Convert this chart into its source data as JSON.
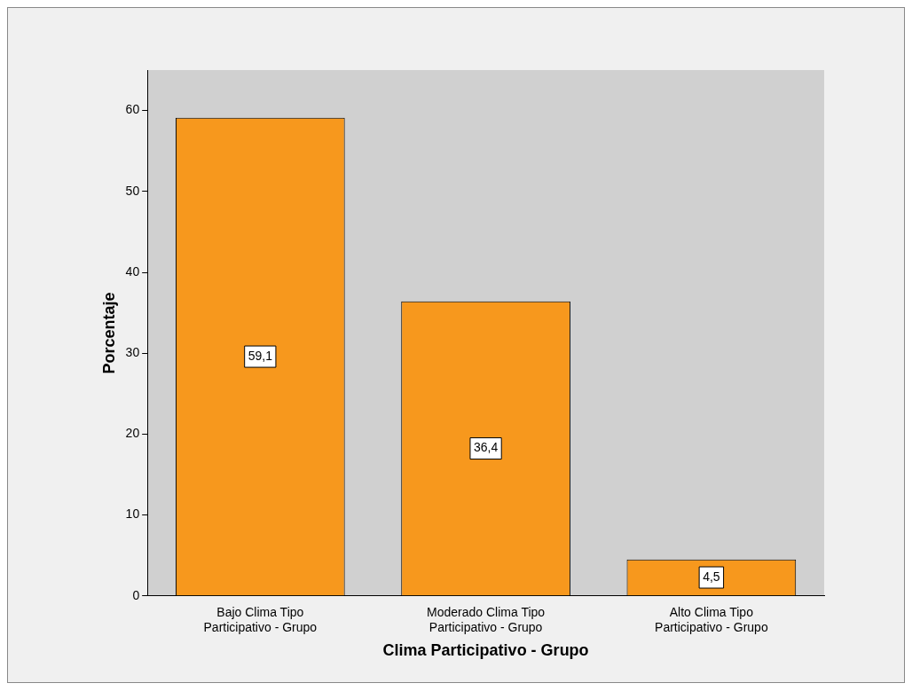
{
  "chart_data": {
    "type": "bar",
    "xlabel": "Clima Participativo - Grupo",
    "ylabel": "Porcentaje",
    "categories": [
      "Bajo Clima Tipo Participativo - Grupo",
      "Moderado Clima Tipo Participativo - Grupo",
      "Alto Clima Tipo Participativo - Grupo"
    ],
    "values": [
      59.1,
      36.4,
      4.5
    ],
    "value_labels": [
      "59,1",
      "36,4",
      "4,5"
    ],
    "color": "#f7981d",
    "ylim": [
      0,
      65
    ],
    "yticks": [
      0,
      10,
      20,
      30,
      40,
      50,
      60
    ],
    "grid": false,
    "legend": false
  }
}
